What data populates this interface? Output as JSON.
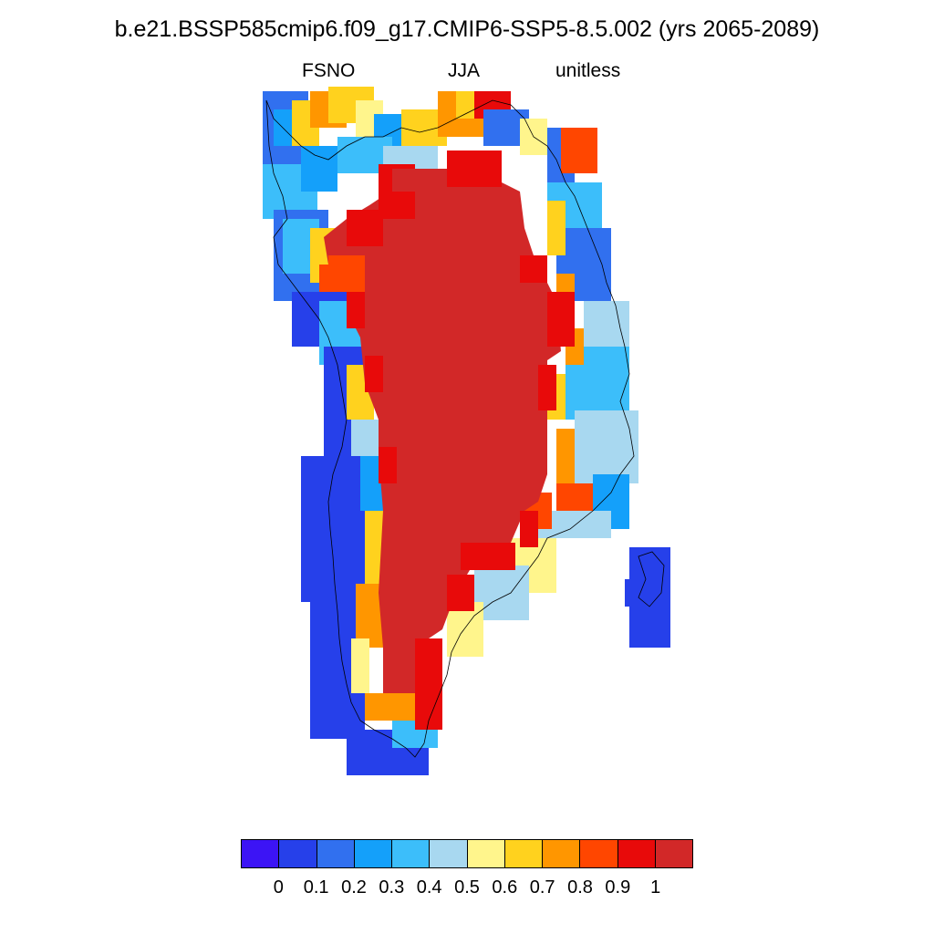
{
  "title": "b.e21.BSSP585cmip6.f09_g17.CMIP6-SSP5-8.5.002 (yrs 2065-2089)",
  "subtitle": {
    "left": "FSNO",
    "center": "JJA",
    "right": "unitless"
  },
  "colorbar": {
    "colors": [
      "#3c14f5",
      "#2640ea",
      "#3170ef",
      "#14a0fa",
      "#3cbefa",
      "#a8d8f0",
      "#fff58c",
      "#ffd21e",
      "#ff9600",
      "#ff4600",
      "#e80a0a",
      "#d22828"
    ],
    "tick_labels": [
      "0",
      "0.1",
      "0.2",
      "0.3",
      "0.4",
      "0.5",
      "0.6",
      "0.7",
      "0.8",
      "0.9",
      "1"
    ]
  },
  "map": {
    "region": "Greenland",
    "variable": "FSNO",
    "value_range": [
      0,
      1
    ],
    "interior_value": 1.0,
    "coast_value": "0.1-0.9"
  }
}
